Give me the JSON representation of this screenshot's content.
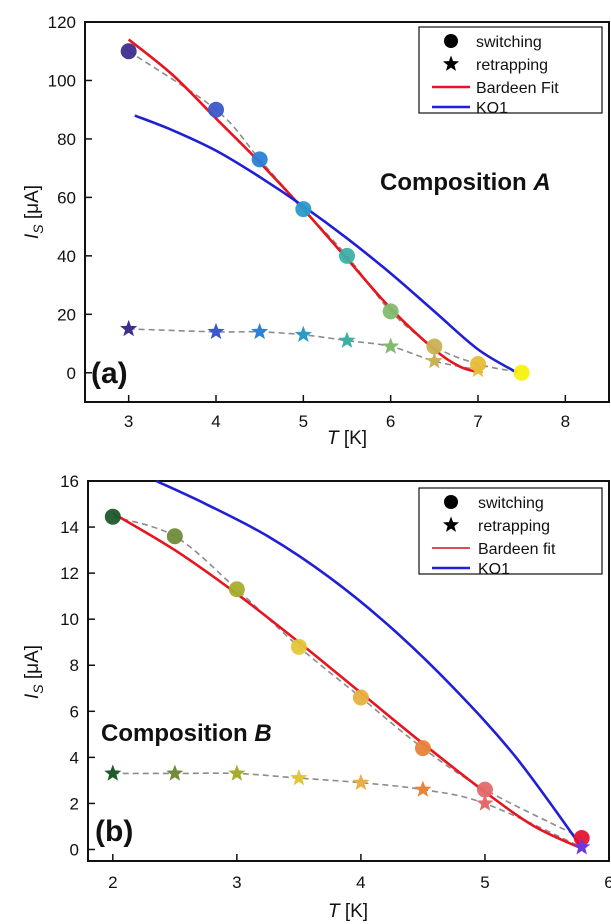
{
  "chart_data": [
    {
      "type": "scatter",
      "panel_label": "(a)",
      "annotation": "Composition",
      "annotation_italic": "A",
      "xlabel_italic": "T",
      "xlabel_rest": " [K]",
      "ylabel_italic": "I",
      "ylabel_sub": "S",
      "ylabel_rest": " [μA]",
      "xlim": [
        2.5,
        8.5
      ],
      "ylim": [
        -10,
        120
      ],
      "xticks": [
        3,
        4,
        5,
        6,
        7,
        8
      ],
      "yticks": [
        0,
        20,
        40,
        60,
        80,
        100,
        120
      ],
      "legend_position": "top-right",
      "legend": [
        {
          "label": "switching",
          "marker": "circle",
          "color": "#000000"
        },
        {
          "label": "retrapping",
          "marker": "star",
          "color": "#000000"
        },
        {
          "label": "Bardeen Fit",
          "marker": "line",
          "color": "#e8141e"
        },
        {
          "label": "KO1",
          "marker": "line",
          "color": "#1f1fd6"
        }
      ],
      "series": [
        {
          "name": "switching",
          "kind": "points",
          "marker": "circle",
          "x": [
            3.0,
            4.0,
            4.5,
            5.0,
            5.5,
            6.0,
            6.5,
            7.0,
            7.5
          ],
          "y": [
            110,
            90,
            73,
            56,
            40,
            21,
            9,
            3,
            0
          ],
          "colors": [
            "#3d2f8e",
            "#3a58c9",
            "#2b80d8",
            "#2a9bc9",
            "#3cb0a5",
            "#7fbc6e",
            "#c9b255",
            "#e6bd3a",
            "#f5f10e"
          ],
          "connector": true
        },
        {
          "name": "retrapping",
          "kind": "points",
          "marker": "star",
          "x": [
            3.0,
            4.0,
            4.5,
            5.0,
            5.5,
            6.0,
            6.5,
            7.0
          ],
          "y": [
            15,
            14,
            14,
            13,
            11,
            9,
            4,
            1
          ],
          "colors": [
            "#3d2f8e",
            "#3a58c9",
            "#2b80d8",
            "#2a9bc9",
            "#3cb0a5",
            "#7fbc6e",
            "#c9b255",
            "#e6bd3a"
          ],
          "connector": true
        },
        {
          "name": "Bardeen Fit",
          "kind": "line",
          "color": "#e8141e",
          "x": [
            3.0,
            3.5,
            4.0,
            4.5,
            5.0,
            5.5,
            6.0,
            6.5,
            6.8,
            7.05
          ],
          "y": [
            114,
            102,
            87,
            72,
            56,
            39,
            22,
            8,
            2,
            0
          ]
        },
        {
          "name": "KO1",
          "kind": "line",
          "color": "#1f1fd6",
          "x": [
            3.07,
            3.5,
            4.0,
            4.5,
            5.0,
            5.5,
            6.0,
            6.5,
            7.0,
            7.45
          ],
          "y": [
            88,
            83,
            76,
            67,
            57,
            46,
            34,
            21,
            8,
            0
          ]
        }
      ]
    },
    {
      "type": "scatter",
      "panel_label": "(b)",
      "annotation": "Composition",
      "annotation_italic": "B",
      "xlabel_italic": "T",
      "xlabel_rest": " [K]",
      "ylabel_italic": "I",
      "ylabel_sub": "S",
      "ylabel_rest": " [μA]",
      "xlim": [
        1.8,
        6.0
      ],
      "ylim": [
        -0.5,
        16
      ],
      "xticks": [
        2,
        3,
        4,
        5,
        6
      ],
      "yticks": [
        0,
        2,
        4,
        6,
        8,
        10,
        12,
        14,
        16
      ],
      "legend_position": "top-right",
      "legend": [
        {
          "label": "switching",
          "marker": "circle",
          "color": "#000000"
        },
        {
          "label": "retrapping",
          "marker": "star",
          "color": "#000000"
        },
        {
          "label": "Bardeen fit",
          "marker": "line",
          "color": "#c8161e"
        },
        {
          "label": "KO1",
          "marker": "line",
          "color": "#1f1fd6"
        }
      ],
      "series": [
        {
          "name": "switching",
          "kind": "points",
          "marker": "circle",
          "x": [
            2.0,
            2.5,
            3.0,
            3.5,
            4.0,
            4.5,
            5.0,
            5.78
          ],
          "y": [
            14.45,
            13.6,
            11.3,
            8.8,
            6.6,
            4.4,
            2.6,
            0.5
          ],
          "colors": [
            "#1e5a2a",
            "#6f8c3a",
            "#a6ad2e",
            "#e2c63a",
            "#e8b040",
            "#e8843a",
            "#e36a6a",
            "#e81432"
          ],
          "connector": true
        },
        {
          "name": "retrapping",
          "kind": "points",
          "marker": "star",
          "x": [
            2.0,
            2.5,
            3.0,
            3.5,
            4.0,
            4.5,
            5.0,
            5.78
          ],
          "y": [
            3.3,
            3.3,
            3.3,
            3.1,
            2.9,
            2.6,
            2.0,
            0.1
          ],
          "colors": [
            "#1e5a2a",
            "#6f8c3a",
            "#a6ad2e",
            "#e2c63a",
            "#e8b040",
            "#e8843a",
            "#e36a6a",
            "#6a3ad6"
          ],
          "connector": true
        },
        {
          "name": "Bardeen fit",
          "kind": "line",
          "color": "#e8141e",
          "x": [
            2.0,
            2.5,
            3.0,
            3.5,
            4.0,
            4.5,
            5.0,
            5.4,
            5.8
          ],
          "y": [
            14.6,
            13.0,
            11.1,
            9.0,
            6.8,
            4.6,
            2.5,
            1.0,
            0.0
          ]
        },
        {
          "name": "KO1",
          "kind": "line",
          "color": "#1f1fd6",
          "x": [
            2.35,
            2.75,
            3.25,
            3.75,
            4.25,
            4.75,
            5.25,
            5.78
          ],
          "y": [
            16.0,
            15.0,
            13.6,
            11.8,
            9.6,
            7.0,
            4.0,
            0.1
          ]
        }
      ]
    }
  ]
}
